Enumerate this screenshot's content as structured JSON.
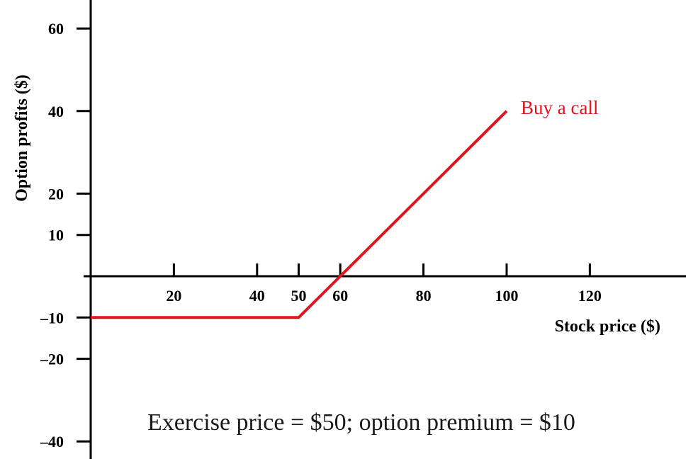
{
  "chart_data": {
    "type": "line",
    "title": "",
    "xlabel": "Stock price ($)",
    "ylabel": "Option profits ($)",
    "xlim": [
      0,
      140
    ],
    "ylim": [
      -45,
      70
    ],
    "x_ticks": [
      20,
      40,
      50,
      60,
      80,
      100,
      120
    ],
    "y_ticks": [
      60,
      40,
      20,
      10,
      -10,
      -20,
      -40
    ],
    "x_tick_labels": [
      "20",
      "40",
      "50",
      "60",
      "80",
      "100",
      "120"
    ],
    "y_tick_labels": [
      "60",
      "40",
      "20",
      "10",
      "–10",
      "–20",
      "–40"
    ],
    "grid": false,
    "series": [
      {
        "name": "Buy a call",
        "color": "#e0141e",
        "x": [
          0,
          50,
          60,
          100
        ],
        "y": [
          -10,
          -10,
          0,
          40
        ]
      }
    ],
    "annotations": [
      {
        "text": "Exercise price = $50; option premium = $10"
      }
    ]
  }
}
